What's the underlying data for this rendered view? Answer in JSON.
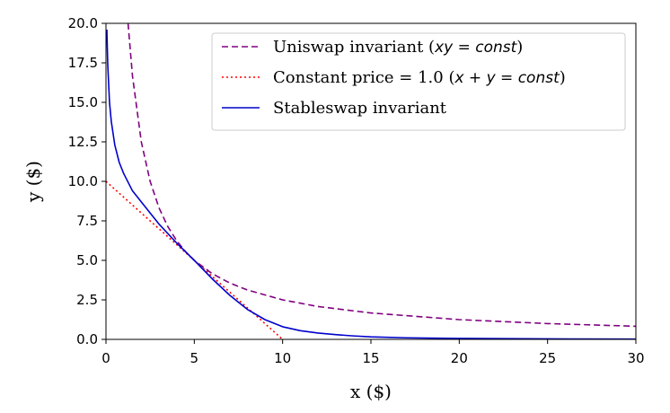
{
  "chart_data": {
    "type": "line",
    "xlabel": "x ($)",
    "ylabel": "y ($)",
    "xlim": [
      0,
      30
    ],
    "ylim": [
      0,
      20
    ],
    "x_ticks": [
      "0",
      "5",
      "10",
      "15",
      "20",
      "25",
      "30"
    ],
    "y_ticks": [
      "0.0",
      "2.5",
      "5.0",
      "7.5",
      "10.0",
      "12.5",
      "15.0",
      "17.5",
      "20.0"
    ],
    "grid": false,
    "legend_position": "top-right",
    "series": [
      {
        "name": "Uniswap invariant (xy = const)",
        "legend_prefix": "Uniswap invariant (",
        "legend_math": "xy = const",
        "legend_suffix": ")",
        "style": "dashed",
        "color": "#800080",
        "x": [
          1.25,
          1.5,
          2,
          2.5,
          3,
          3.5,
          4,
          4.5,
          5,
          6,
          7,
          8,
          10,
          12,
          15,
          20,
          25,
          30
        ],
        "y": [
          20,
          16.67,
          12.5,
          10,
          8.33,
          7.14,
          6.25,
          5.56,
          5,
          4.17,
          3.57,
          3.13,
          2.5,
          2.08,
          1.67,
          1.25,
          1.0,
          0.83
        ]
      },
      {
        "name": "Constant price = 1.0 (x + y = const)",
        "legend_prefix": "Constant price = 1.0 (",
        "legend_math": "x + y = const",
        "legend_suffix": ")",
        "style": "dotted",
        "color": "#ff0000",
        "x": [
          0,
          10
        ],
        "y": [
          10,
          0
        ]
      },
      {
        "name": "Stableswap invariant",
        "legend_prefix": "Stableswap invariant",
        "legend_math": "",
        "legend_suffix": "",
        "style": "solid",
        "color": "#0000cc",
        "x": [
          0.05,
          0.1,
          0.2,
          0.3,
          0.5,
          0.75,
          1,
          1.5,
          2,
          2.5,
          3,
          4,
          5,
          6,
          7,
          8,
          9,
          10,
          11,
          12,
          13,
          14,
          15,
          17,
          20,
          25,
          30
        ],
        "y": [
          19.6,
          17.4,
          15.0,
          13.8,
          12.3,
          11.2,
          10.5,
          9.4,
          8.7,
          8.0,
          7.3,
          6.1,
          5.0,
          3.85,
          2.8,
          1.9,
          1.25,
          0.8,
          0.55,
          0.4,
          0.3,
          0.22,
          0.16,
          0.1,
          0.06,
          0.03,
          0.02
        ]
      }
    ]
  }
}
